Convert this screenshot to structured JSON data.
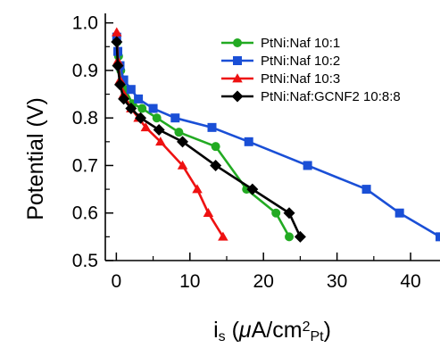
{
  "chart_data": {
    "type": "line",
    "xlabel": {
      "main": "i",
      "sub_s": "s",
      "open": " (",
      "mu": "μ",
      "unit": "A/cm",
      "sup": "2",
      "sub_pt": "Pt",
      "close": ")"
    },
    "ylabel": "Potential (V)",
    "xlim": [
      -1.5,
      44
    ],
    "ylim": [
      0.5,
      1.02
    ],
    "xticks": [
      0,
      10,
      20,
      30,
      40
    ],
    "yticks": [
      0.5,
      0.6,
      0.7,
      0.8,
      0.9,
      1.0
    ],
    "xtick_labels": [
      "0",
      "10",
      "20",
      "30",
      "40"
    ],
    "ytick_labels": [
      "0.5",
      "0.6",
      "0.7",
      "0.8",
      "0.9",
      "1.0"
    ],
    "legend_position": "top-right",
    "series": [
      {
        "name": "PtNi:Naf 10:1",
        "color": "#22aa22",
        "marker": "circle",
        "x": [
          0.1,
          0.3,
          0.6,
          1.2,
          2.2,
          3.5,
          5.5,
          8.5,
          13.5,
          17.7,
          21.7,
          23.5
        ],
        "y": [
          0.96,
          0.93,
          0.9,
          0.86,
          0.83,
          0.82,
          0.8,
          0.77,
          0.74,
          0.65,
          0.6,
          0.55
        ]
      },
      {
        "name": "PtNi:Naf 10:2",
        "color": "#1a4fd6",
        "marker": "square",
        "x": [
          0.05,
          0.2,
          0.5,
          1.0,
          2.0,
          3.0,
          5.0,
          8.0,
          13.0,
          18.0,
          26.0,
          34.0,
          38.5,
          44.0
        ],
        "y": [
          0.97,
          0.94,
          0.91,
          0.88,
          0.86,
          0.84,
          0.82,
          0.8,
          0.78,
          0.75,
          0.7,
          0.65,
          0.6,
          0.55
        ]
      },
      {
        "name": "PtNi:Naf 10:3",
        "color": "#ee1111",
        "marker": "triangle",
        "x": [
          0.05,
          0.2,
          0.5,
          1.0,
          2.0,
          3.0,
          4.0,
          6.0,
          9.0,
          11.0,
          12.5,
          14.5
        ],
        "y": [
          0.98,
          0.92,
          0.88,
          0.85,
          0.82,
          0.8,
          0.78,
          0.75,
          0.7,
          0.65,
          0.6,
          0.55
        ]
      },
      {
        "name": "PtNi:Naf:GCNF2 10:8:8",
        "color": "#000000",
        "marker": "diamond",
        "x": [
          0.05,
          0.2,
          0.5,
          1.0,
          2.0,
          3.3,
          5.8,
          9.0,
          13.5,
          18.5,
          23.5,
          25.0
        ],
        "y": [
          0.96,
          0.91,
          0.87,
          0.84,
          0.82,
          0.8,
          0.775,
          0.75,
          0.7,
          0.65,
          0.6,
          0.55
        ]
      }
    ]
  }
}
